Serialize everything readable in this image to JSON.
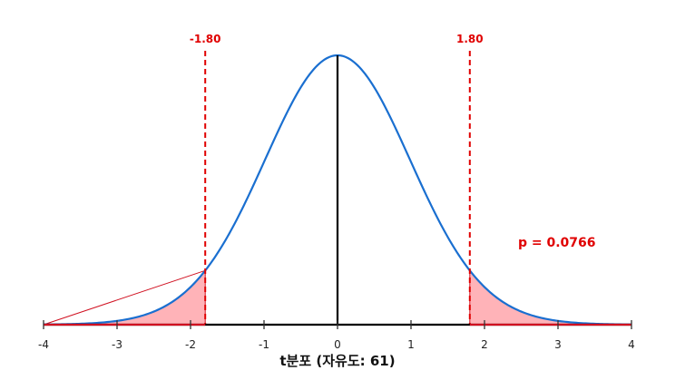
{
  "chart_data": {
    "type": "line",
    "distribution": "t",
    "degrees_of_freedom": 61,
    "xlabel": "t분포 (자유도: 61)",
    "xlim": [
      -4,
      4
    ],
    "x_ticks": [
      -4,
      -3,
      -2,
      -1,
      0,
      1,
      2,
      3,
      4
    ],
    "x_tick_labels": [
      "-4",
      "-3",
      "-2",
      "-1",
      "0",
      "1",
      "2",
      "3",
      "4"
    ],
    "critical_values": [
      -1.8,
      1.8
    ],
    "critical_labels": [
      "-1.80",
      "1.80"
    ],
    "p_value_label": "p = 0.0766",
    "shaded_tails": [
      {
        "from": -4,
        "to": -1.8
      },
      {
        "from": 1.8,
        "to": 4
      }
    ],
    "colors": {
      "curve": "#1a6fd0",
      "critical_line": "#e00000",
      "tail_fill": "#ffb3b8",
      "tail_edge": "#d01020",
      "axis": "#000000",
      "p_text": "#e00000"
    }
  }
}
